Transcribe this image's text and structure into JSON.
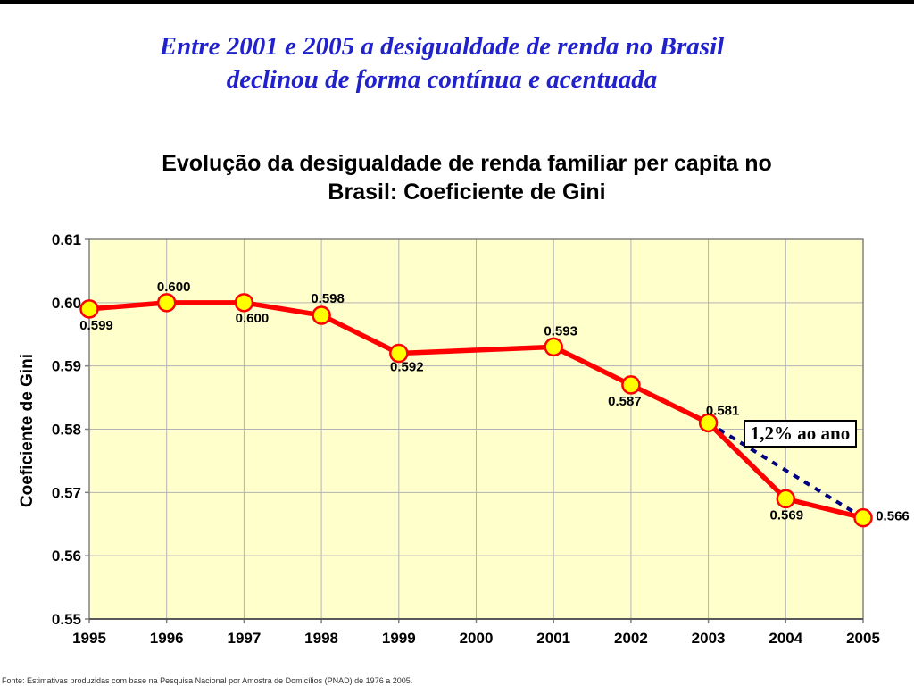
{
  "slide": {
    "title_line1": "Entre 2001 e 2005 a desigualdade de renda no Brasil",
    "title_line2": "declinou de forma contínua e acentuada",
    "title_color": "#2222CC",
    "footer": "Fonte: Estimativas produzidas com base na Pesquisa Nacional por Amostra de Domicílios (PNAD) de 1976 a 2005."
  },
  "chart_data": {
    "type": "line",
    "title_line1": "Evolução da desigualdade de renda familiar per capita no",
    "title_line2": "Brasil: Coeficiente de Gini",
    "ylabel": "Coeficiente de Gini",
    "xlabel": "",
    "categories": [
      "1995",
      "1996",
      "1997",
      "1998",
      "1999",
      "2000",
      "2001",
      "2002",
      "2003",
      "2004",
      "2005"
    ],
    "series": [
      {
        "name": "Coeficiente de Gini",
        "values": [
          0.599,
          0.6,
          0.6,
          0.598,
          0.592,
          null,
          0.593,
          0.587,
          0.581,
          0.569,
          0.566
        ]
      }
    ],
    "point_labels": [
      "0.599",
      "0.600",
      "0.600",
      "0.598",
      "0.592",
      null,
      "0.593",
      "0.587",
      "0.581",
      "0.569",
      "0.566"
    ],
    "label_offsets": [
      [
        8,
        18
      ],
      [
        8,
        -18
      ],
      [
        9,
        17
      ],
      [
        7,
        -19
      ],
      [
        9,
        15
      ],
      null,
      [
        8,
        -18
      ],
      [
        -7,
        18
      ],
      [
        16,
        -14
      ],
      [
        1,
        18
      ],
      [
        33,
        -2
      ]
    ],
    "ylim": [
      0.55,
      0.61
    ],
    "ytick_step": 0.01,
    "ytick_labels": [
      "0.61",
      "0.60",
      "0.59",
      "0.58",
      "0.57",
      "0.56",
      "0.55"
    ],
    "grid": true,
    "legend": "none",
    "annotation": {
      "label": "1,2% ao ano",
      "from_index": 8,
      "to_index": 10
    },
    "colors": {
      "line": "#FF0000",
      "marker_fill": "#FFFF00",
      "marker_stroke": "#FF0000",
      "plot_bg": "#FFFFCC",
      "grid": "#B3B3B3",
      "border": "#808080",
      "bottom_axis": "#595959",
      "trend": "#000080"
    }
  }
}
